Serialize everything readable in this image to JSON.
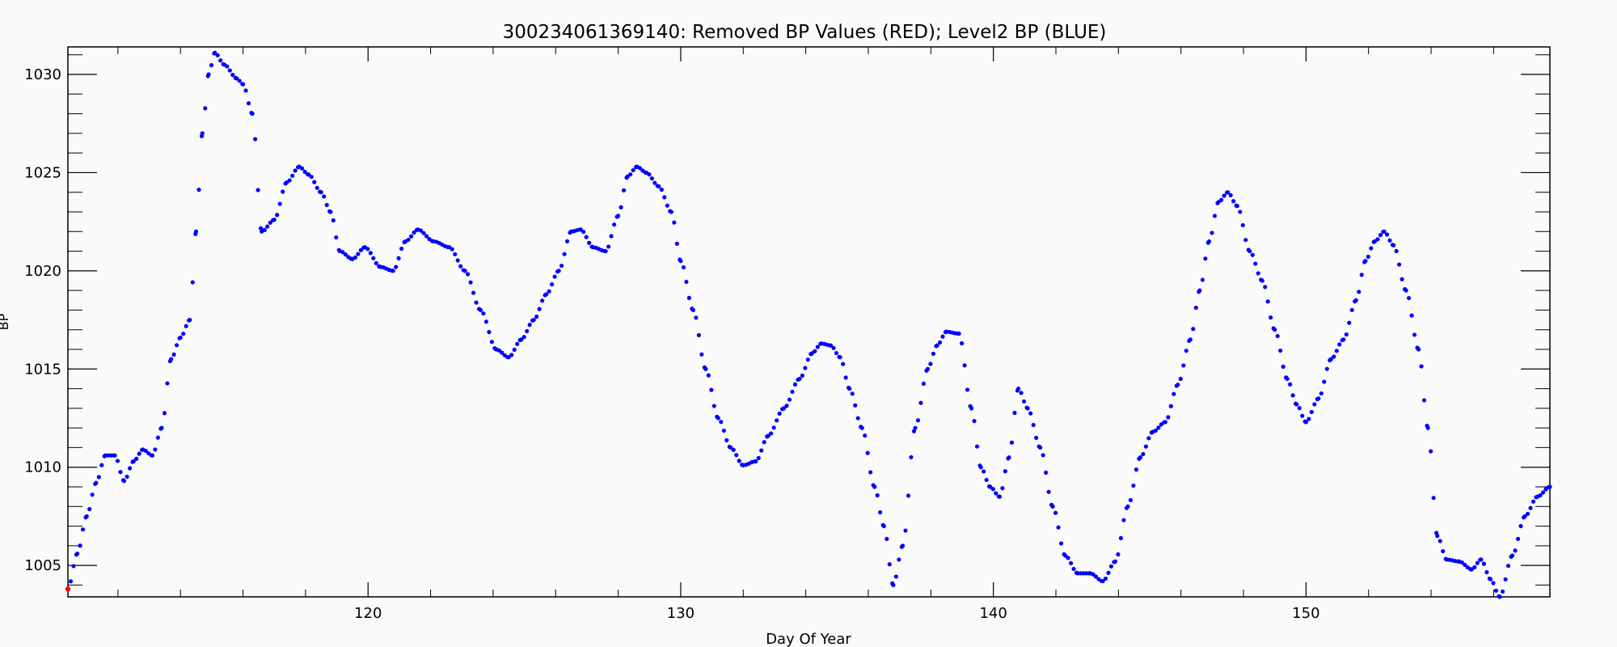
{
  "chart_data": {
    "type": "scatter",
    "title": "300234061369140: Removed BP Values (RED); Level2 BP (BLUE)",
    "xlabel": "Day Of Year",
    "ylabel": "BP",
    "xlim": [
      110.4,
      157.8
    ],
    "ylim": [
      1003.4,
      1031.4
    ],
    "x_ticks": [
      120,
      130,
      140,
      150
    ],
    "y_ticks": [
      1005,
      1010,
      1015,
      1020,
      1025,
      1030
    ],
    "grid": false,
    "series": [
      {
        "name": "Level2 BP",
        "color": "#0000ff",
        "x": [
          110.4,
          110.7,
          111.0,
          111.3,
          111.6,
          111.9,
          112.2,
          112.5,
          112.8,
          113.1,
          113.4,
          113.7,
          114.0,
          114.3,
          114.5,
          114.7,
          114.9,
          115.1,
          115.4,
          115.8,
          116.0,
          116.3,
          116.6,
          117.0,
          117.4,
          117.8,
          118.1,
          118.5,
          118.8,
          119.1,
          119.5,
          119.9,
          120.4,
          120.8,
          121.2,
          121.6,
          122.1,
          122.6,
          123.1,
          123.6,
          124.1,
          124.5,
          124.9,
          125.3,
          125.7,
          126.1,
          126.5,
          126.8,
          127.2,
          127.6,
          128.0,
          128.3,
          128.6,
          128.9,
          129.3,
          129.7,
          130.0,
          130.4,
          130.8,
          131.2,
          131.6,
          132.0,
          132.4,
          132.8,
          133.3,
          133.8,
          134.2,
          134.5,
          134.8,
          135.1,
          135.4,
          135.8,
          136.2,
          136.5,
          136.8,
          137.1,
          137.5,
          137.9,
          138.2,
          138.5,
          138.9,
          139.3,
          139.6,
          139.9,
          140.2,
          140.5,
          140.8,
          141.1,
          141.5,
          141.9,
          142.3,
          142.7,
          143.1,
          143.5,
          143.9,
          144.3,
          144.7,
          145.1,
          145.5,
          145.9,
          146.3,
          146.6,
          146.9,
          147.2,
          147.5,
          147.8,
          148.2,
          148.6,
          149.0,
          149.4,
          149.7,
          150.0,
          150.4,
          150.8,
          151.2,
          151.6,
          151.9,
          152.2,
          152.5,
          152.8,
          153.2,
          153.6,
          153.9,
          154.2,
          154.5,
          154.9,
          155.3,
          155.6,
          155.9,
          156.2,
          156.6,
          157.0,
          157.4,
          157.8
        ],
        "values": [
          1003.8,
          1005.6,
          1007.5,
          1009.2,
          1010.6,
          1010.6,
          1009.3,
          1010.3,
          1010.9,
          1010.6,
          1012.0,
          1015.5,
          1016.6,
          1017.5,
          1022.0,
          1027.0,
          1030.0,
          1031.1,
          1030.5,
          1029.8,
          1029.5,
          1028.0,
          1022.0,
          1022.6,
          1024.5,
          1025.3,
          1024.9,
          1024.0,
          1023.0,
          1021.0,
          1020.6,
          1021.2,
          1020.2,
          1020.0,
          1021.5,
          1022.1,
          1021.5,
          1021.2,
          1020.0,
          1018.0,
          1016.0,
          1015.6,
          1016.5,
          1017.5,
          1018.8,
          1020.0,
          1022.0,
          1022.1,
          1021.2,
          1021.0,
          1022.8,
          1024.8,
          1025.3,
          1025.0,
          1024.3,
          1023.0,
          1020.5,
          1018.0,
          1015.0,
          1012.5,
          1011.0,
          1010.1,
          1010.3,
          1011.6,
          1013.0,
          1014.5,
          1015.8,
          1016.3,
          1016.2,
          1015.6,
          1014.0,
          1012.0,
          1009.0,
          1007.0,
          1004.0,
          1006.0,
          1012.0,
          1015.0,
          1016.2,
          1016.9,
          1016.8,
          1013.0,
          1010.0,
          1009.0,
          1008.5,
          1010.5,
          1014.0,
          1013.0,
          1011.0,
          1008.0,
          1005.5,
          1004.6,
          1004.6,
          1004.2,
          1005.2,
          1008.0,
          1010.5,
          1011.8,
          1012.3,
          1014.2,
          1016.5,
          1019.0,
          1021.5,
          1023.5,
          1024.0,
          1023.3,
          1021.0,
          1019.5,
          1017.0,
          1014.5,
          1013.2,
          1012.3,
          1013.5,
          1015.5,
          1016.5,
          1018.5,
          1020.5,
          1021.5,
          1022.0,
          1021.3,
          1019.0,
          1016.0,
          1012.0,
          1006.5,
          1005.3,
          1005.2,
          1004.8,
          1005.3,
          1004.3,
          1003.4,
          1005.5,
          1007.5,
          1008.5,
          1009.0
        ]
      },
      {
        "name": "Removed BP Values",
        "color": "#ff0000",
        "x": [
          110.4
        ],
        "values": [
          1003.8
        ]
      }
    ]
  }
}
